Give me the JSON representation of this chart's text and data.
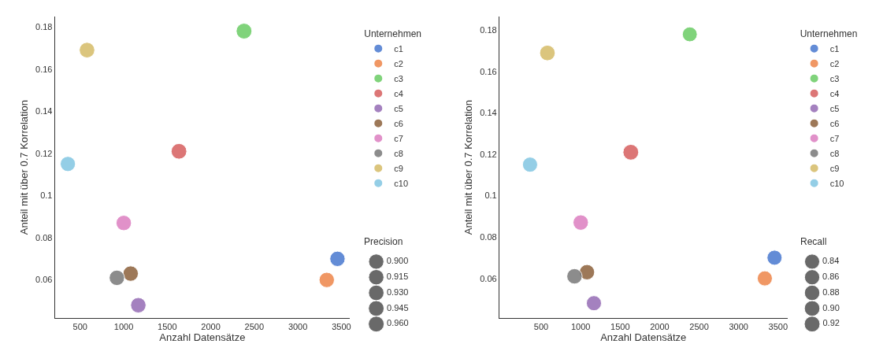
{
  "chart_data": [
    {
      "type": "bubble",
      "xlabel": "Anzahl Datensätze",
      "ylabel": "Anteil mit über 0.7 Korrelation",
      "legend_title": "Unternehmen",
      "legend": "right",
      "annotations": [
        "Precision"
      ],
      "size_legend": [
        {
          "value": 0.9,
          "label": "0.900"
        },
        0.915,
        {
          "value": 0.93,
          "label": "0.930"
        },
        0.945,
        {
          "value": 0.96,
          "label": "0.960"
        }
      ],
      "xlim": [
        210,
        3596
      ],
      "ylim": [
        0.0418,
        0.185
      ],
      "xticks": [
        500,
        1000,
        1500,
        2000,
        2500,
        3000,
        3500
      ],
      "yticks": [
        0.06,
        0.08,
        0.1,
        0.12,
        0.14,
        0.16,
        0.18
      ],
      "series": [
        {
          "name": "c1",
          "color": "#4878d0",
          "x": [
            3455
          ],
          "values": [
            0.07
          ],
          "sizes": [
            0.905
          ]
        },
        {
          "name": "c2",
          "color": "#ee854a",
          "x": [
            3332
          ],
          "values": [
            0.06
          ],
          "sizes": [
            0.905
          ]
        },
        {
          "name": "c3",
          "color": "#6acc64",
          "x": [
            2382
          ],
          "values": [
            0.178
          ],
          "sizes": [
            0.955
          ]
        },
        {
          "name": "c4",
          "color": "#d65f5f",
          "x": [
            1635
          ],
          "values": [
            0.121
          ],
          "sizes": [
            0.945
          ]
        },
        {
          "name": "c5",
          "color": "#956cb4",
          "x": [
            1168
          ],
          "values": [
            0.048
          ],
          "sizes": [
            0.915
          ]
        },
        {
          "name": "c6",
          "color": "#8c613c",
          "x": [
            1080
          ],
          "values": [
            0.063
          ],
          "sizes": [
            0.91
          ]
        },
        {
          "name": "c7",
          "color": "#dc7ec0",
          "x": [
            1001
          ],
          "values": [
            0.087
          ],
          "sizes": [
            0.91
          ]
        },
        {
          "name": "c8",
          "color": "#797979",
          "x": [
            922
          ],
          "values": [
            0.061
          ],
          "sizes": [
            0.91
          ]
        },
        {
          "name": "c9",
          "color": "#d5bb67",
          "x": [
            579
          ],
          "values": [
            0.169
          ],
          "sizes": [
            0.925
          ]
        },
        {
          "name": "c10",
          "color": "#82c6e2",
          "x": [
            359
          ],
          "values": [
            0.115
          ],
          "sizes": [
            0.89
          ]
        }
      ]
    },
    {
      "type": "bubble",
      "xlabel": "Anzahl Datensätze",
      "ylabel": "Anteil mit über 0.7 Korrelation",
      "legend_title": "Unternehmen",
      "legend": "right",
      "annotations": [
        "Recall"
      ],
      "size_legend": [
        0.84,
        0.86,
        0.88,
        {
          "value": 0.9,
          "label": "0.90"
        },
        0.92
      ],
      "xlim": [
        -30,
        3617
      ],
      "ylim": [
        0.0407,
        0.1867
      ],
      "xticks": [
        500,
        1000,
        1500,
        2000,
        2500,
        3000,
        3500
      ],
      "yticks": [
        0.06,
        0.08,
        0.1,
        0.12,
        0.14,
        0.16,
        0.18
      ],
      "series": [
        {
          "name": "c1",
          "color": "#4878d0",
          "x": [
            3455
          ],
          "values": [
            0.07
          ],
          "sizes": [
            0.835
          ]
        },
        {
          "name": "c2",
          "color": "#ee854a",
          "x": [
            3332
          ],
          "values": [
            0.06
          ],
          "sizes": [
            0.84
          ]
        },
        {
          "name": "c3",
          "color": "#6acc64",
          "x": [
            2382
          ],
          "values": [
            0.178
          ],
          "sizes": [
            0.82
          ]
        },
        {
          "name": "c4",
          "color": "#d65f5f",
          "x": [
            1635
          ],
          "values": [
            0.121
          ],
          "sizes": [
            0.91
          ]
        },
        {
          "name": "c5",
          "color": "#956cb4",
          "x": [
            1168
          ],
          "values": [
            0.048
          ],
          "sizes": [
            0.84
          ]
        },
        {
          "name": "c6",
          "color": "#8c613c",
          "x": [
            1080
          ],
          "values": [
            0.063
          ],
          "sizes": [
            0.865
          ]
        },
        {
          "name": "c7",
          "color": "#dc7ec0",
          "x": [
            1001
          ],
          "values": [
            0.087
          ],
          "sizes": [
            0.875
          ]
        },
        {
          "name": "c8",
          "color": "#797979",
          "x": [
            922
          ],
          "values": [
            0.061
          ],
          "sizes": [
            0.875
          ]
        },
        {
          "name": "c9",
          "color": "#d5bb67",
          "x": [
            579
          ],
          "values": [
            0.169
          ],
          "sizes": [
            0.895
          ]
        },
        {
          "name": "c10",
          "color": "#82c6e2",
          "x": [
            359
          ],
          "values": [
            0.115
          ],
          "sizes": [
            0.845
          ]
        }
      ]
    }
  ]
}
